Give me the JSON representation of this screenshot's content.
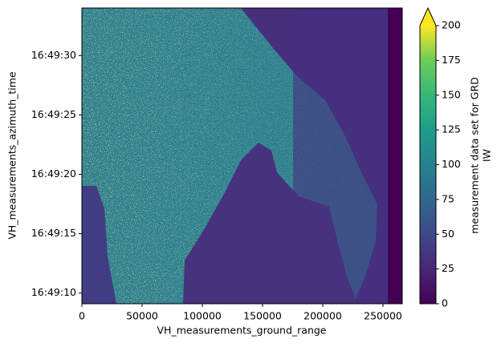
{
  "chart_data": {
    "type": "image",
    "xlabel": "VH_measurements_ground_range",
    "ylabel": "VH_measurements_azimuth_time",
    "xlim": [
      0,
      266000
    ],
    "xticks": [
      0,
      50000,
      100000,
      150000,
      200000,
      250000
    ],
    "ylim": [
      "16:49:09.1",
      "16:49:34.0"
    ],
    "yticks": [
      "16:49:10",
      "16:49:15",
      "16:49:20",
      "16:49:25",
      "16:49:30"
    ],
    "colorbar": {
      "label": [
        "measurement data set for GRD",
        "IW"
      ],
      "colormap": "viridis",
      "extend": "max",
      "lim": [
        0,
        200
      ],
      "ticks": [
        0,
        25,
        50,
        75,
        100,
        125,
        150,
        175,
        200
      ]
    }
  }
}
